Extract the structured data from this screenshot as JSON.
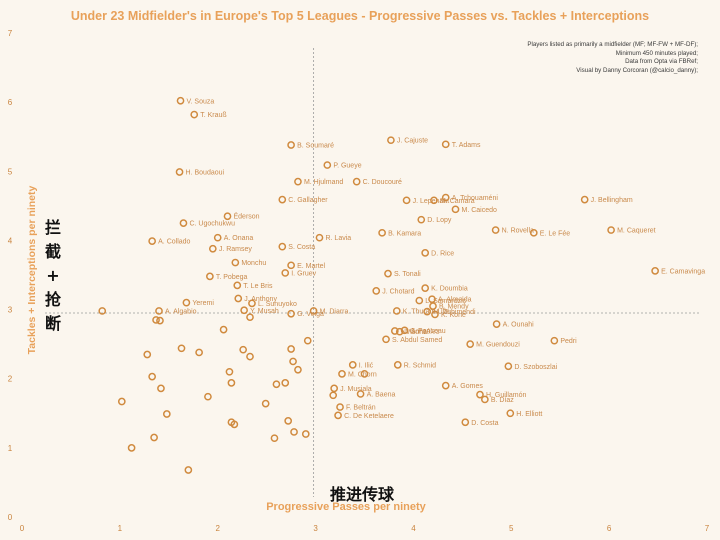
{
  "colors": {
    "background": "#fbf6ee",
    "accent": "#e8a15a",
    "marker": "#d08a3e",
    "label": "#c98a4c",
    "tick": "#c9843f",
    "refline": "#9a9a9a"
  },
  "notes": [
    "Players listed as primarily a midfielder (MF; MF-FW + MF-DF);",
    "Minimum 450 minutes played;",
    "Data from Opta via FBRef;",
    "Visual by Danny Corcoran (@calcio_danny);"
  ],
  "overlay": {
    "y_chinese": [
      "拦",
      "截",
      "+",
      "抢",
      "断"
    ],
    "x_chinese": "推进传球"
  },
  "chart_data": {
    "type": "scatter",
    "title": "Under 23 Midfielder's in Europe's Top 5 Leagues - Progressive Passes vs. Tackles + Interceptions",
    "xlabel": "Progressive Passes per ninety",
    "ylabel": "Tackles + Interceptions per ninety",
    "xlim": [
      0,
      7
    ],
    "ylim": [
      0,
      7
    ],
    "xticks": [
      "0",
      "1",
      "2",
      "3",
      "4",
      "5",
      "6",
      "7"
    ],
    "yticks": [
      "0",
      "1",
      "2",
      "3",
      "4",
      "5",
      "6",
      "7"
    ],
    "reference_lines": {
      "x": 2.98,
      "y": 2.95
    },
    "grid": false,
    "points": [
      {
        "x": 1.62,
        "y": 6.02,
        "label": "V. Souza"
      },
      {
        "x": 1.76,
        "y": 5.82,
        "label": "T. Krauß"
      },
      {
        "x": 2.75,
        "y": 5.38,
        "label": "B. Soumaré"
      },
      {
        "x": 3.77,
        "y": 5.45,
        "label": "J. Cajuste"
      },
      {
        "x": 4.33,
        "y": 5.39,
        "label": "T. Adams"
      },
      {
        "x": 3.12,
        "y": 5.09,
        "label": "P. Gueye"
      },
      {
        "x": 1.61,
        "y": 4.99,
        "label": "H. Boudaoui"
      },
      {
        "x": 2.82,
        "y": 4.85,
        "label": "M. Hjulmand"
      },
      {
        "x": 3.42,
        "y": 4.85,
        "label": "C. Doucouré"
      },
      {
        "x": 4.33,
        "y": 4.62,
        "label": "A. Tchouaméni"
      },
      {
        "x": 2.66,
        "y": 4.59,
        "label": "C. Gallagher"
      },
      {
        "x": 3.93,
        "y": 4.58,
        "label": "J. Lepenant"
      },
      {
        "x": 4.21,
        "y": 4.58,
        "label": "M. Camara"
      },
      {
        "x": 4.43,
        "y": 4.45,
        "label": "M. Caicedo"
      },
      {
        "x": 5.75,
        "y": 4.59,
        "label": "J. Bellingham"
      },
      {
        "x": 2.1,
        "y": 4.35,
        "label": "Éderson"
      },
      {
        "x": 1.65,
        "y": 4.25,
        "label": "C. Ugochukwu"
      },
      {
        "x": 4.08,
        "y": 4.3,
        "label": "D. Lopy"
      },
      {
        "x": 4.84,
        "y": 4.15,
        "label": "N. Rovella"
      },
      {
        "x": 5.23,
        "y": 4.11,
        "label": "E. Le Fée"
      },
      {
        "x": 6.02,
        "y": 4.15,
        "label": "M. Caqueret"
      },
      {
        "x": 1.33,
        "y": 3.99,
        "label": "A. Collado"
      },
      {
        "x": 2.0,
        "y": 4.04,
        "label": "A. Onana"
      },
      {
        "x": 3.04,
        "y": 4.04,
        "label": "R. Lavia"
      },
      {
        "x": 3.68,
        "y": 4.11,
        "label": "B. Kamara"
      },
      {
        "x": 1.95,
        "y": 3.88,
        "label": "J. Ramsey"
      },
      {
        "x": 2.66,
        "y": 3.91,
        "label": "S. Costa"
      },
      {
        "x": 4.12,
        "y": 3.82,
        "label": "D. Rice"
      },
      {
        "x": 2.18,
        "y": 3.68,
        "label": "Monchu"
      },
      {
        "x": 2.75,
        "y": 3.64,
        "label": "E. Martel"
      },
      {
        "x": 1.92,
        "y": 3.48,
        "label": "T. Pobega"
      },
      {
        "x": 2.69,
        "y": 3.53,
        "label": "I. Gruev"
      },
      {
        "x": 3.74,
        "y": 3.52,
        "label": "S. Tonali"
      },
      {
        "x": 6.47,
        "y": 3.56,
        "label": "E. Camavinga"
      },
      {
        "x": 2.2,
        "y": 3.35,
        "label": "T. Le Bris"
      },
      {
        "x": 4.12,
        "y": 3.31,
        "label": "K. Doumbia"
      },
      {
        "x": 3.62,
        "y": 3.27,
        "label": "J. Chotard"
      },
      {
        "x": 2.21,
        "y": 3.16,
        "label": "J. Anthony"
      },
      {
        "x": 4.19,
        "y": 3.15,
        "label": "A. Almeida"
      },
      {
        "x": 1.68,
        "y": 3.1,
        "label": "Yeremi"
      },
      {
        "x": 2.35,
        "y": 3.09,
        "label": "L. Sunuyoko"
      },
      {
        "x": 4.06,
        "y": 3.13,
        "label": "L. Samardzic"
      },
      {
        "x": 4.2,
        "y": 3.05,
        "label": "B. Mendy"
      },
      {
        "x": 0.82,
        "y": 2.98,
        "label": ""
      },
      {
        "x": 1.4,
        "y": 2.98,
        "label": "A. Algabio"
      },
      {
        "x": 2.27,
        "y": 2.99,
        "label": "Y. Musah"
      },
      {
        "x": 2.98,
        "y": 2.98,
        "label": "M. Diarra"
      },
      {
        "x": 3.83,
        "y": 2.98,
        "label": "K. Thuram-Ulie"
      },
      {
        "x": 4.22,
        "y": 2.93,
        "label": "K. Koné"
      },
      {
        "x": 4.14,
        "y": 2.97,
        "label": "M. Zubimendi"
      },
      {
        "x": 1.37,
        "y": 2.85,
        "label": ""
      },
      {
        "x": 1.41,
        "y": 2.84,
        "label": ""
      },
      {
        "x": 2.33,
        "y": 2.89,
        "label": ""
      },
      {
        "x": 2.75,
        "y": 2.94,
        "label": "G. Veiga"
      },
      {
        "x": 3.91,
        "y": 2.7,
        "label": "J. Ponceau"
      },
      {
        "x": 3.86,
        "y": 2.68,
        "label": "Vitinha"
      },
      {
        "x": 3.81,
        "y": 2.69,
        "label": "N. González"
      },
      {
        "x": 4.85,
        "y": 2.79,
        "label": "A. Ounahi"
      },
      {
        "x": 2.06,
        "y": 2.71,
        "label": ""
      },
      {
        "x": 3.72,
        "y": 2.57,
        "label": "S. Abdul Samed"
      },
      {
        "x": 4.58,
        "y": 2.5,
        "label": "M. Guendouzi"
      },
      {
        "x": 5.44,
        "y": 2.55,
        "label": "Pedri"
      },
      {
        "x": 1.63,
        "y": 2.44,
        "label": ""
      },
      {
        "x": 1.81,
        "y": 2.38,
        "label": ""
      },
      {
        "x": 2.26,
        "y": 2.42,
        "label": ""
      },
      {
        "x": 2.75,
        "y": 2.43,
        "label": ""
      },
      {
        "x": 2.92,
        "y": 2.55,
        "label": ""
      },
      {
        "x": 1.28,
        "y": 2.35,
        "label": ""
      },
      {
        "x": 2.33,
        "y": 2.32,
        "label": ""
      },
      {
        "x": 2.77,
        "y": 2.25,
        "label": ""
      },
      {
        "x": 3.38,
        "y": 2.2,
        "label": "I. Ilić"
      },
      {
        "x": 3.84,
        "y": 2.2,
        "label": "R. Schmid"
      },
      {
        "x": 4.97,
        "y": 2.18,
        "label": "D. Szoboszlai"
      },
      {
        "x": 2.12,
        "y": 2.1,
        "label": ""
      },
      {
        "x": 2.82,
        "y": 2.13,
        "label": ""
      },
      {
        "x": 3.5,
        "y": 2.07,
        "label": ""
      },
      {
        "x": 3.27,
        "y": 2.07,
        "label": "M. Chorn"
      },
      {
        "x": 1.33,
        "y": 2.03,
        "label": ""
      },
      {
        "x": 2.14,
        "y": 1.94,
        "label": ""
      },
      {
        "x": 2.6,
        "y": 1.92,
        "label": ""
      },
      {
        "x": 2.69,
        "y": 1.94,
        "label": ""
      },
      {
        "x": 4.33,
        "y": 1.9,
        "label": "A. Gomes"
      },
      {
        "x": 3.19,
        "y": 1.86,
        "label": "J. Musiala"
      },
      {
        "x": 1.42,
        "y": 1.86,
        "label": ""
      },
      {
        "x": 3.18,
        "y": 1.76,
        "label": ""
      },
      {
        "x": 3.46,
        "y": 1.78,
        "label": "A. Baena"
      },
      {
        "x": 4.68,
        "y": 1.77,
        "label": "H. Guillamón"
      },
      {
        "x": 4.73,
        "y": 1.7,
        "label": "B. Díaz"
      },
      {
        "x": 1.9,
        "y": 1.74,
        "label": ""
      },
      {
        "x": 1.02,
        "y": 1.67,
        "label": ""
      },
      {
        "x": 2.49,
        "y": 1.64,
        "label": ""
      },
      {
        "x": 3.25,
        "y": 1.59,
        "label": "F. Beltrán"
      },
      {
        "x": 1.48,
        "y": 1.49,
        "label": ""
      },
      {
        "x": 3.23,
        "y": 1.47,
        "label": "C. De Ketelaere"
      },
      {
        "x": 4.99,
        "y": 1.5,
        "label": "H. Elliott"
      },
      {
        "x": 2.14,
        "y": 1.37,
        "label": ""
      },
      {
        "x": 2.17,
        "y": 1.34,
        "label": ""
      },
      {
        "x": 2.72,
        "y": 1.39,
        "label": ""
      },
      {
        "x": 4.53,
        "y": 1.37,
        "label": "D. Costa"
      },
      {
        "x": 2.78,
        "y": 1.23,
        "label": ""
      },
      {
        "x": 2.9,
        "y": 1.2,
        "label": ""
      },
      {
        "x": 1.35,
        "y": 1.15,
        "label": ""
      },
      {
        "x": 2.58,
        "y": 1.14,
        "label": ""
      },
      {
        "x": 1.12,
        "y": 1.0,
        "label": ""
      },
      {
        "x": 1.7,
        "y": 0.68,
        "label": ""
      }
    ]
  }
}
